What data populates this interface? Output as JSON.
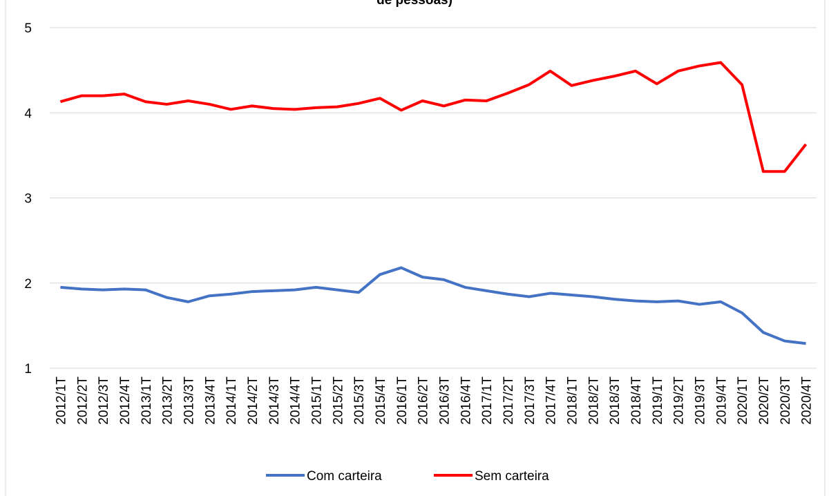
{
  "chart_data": {
    "type": "line",
    "title": "de pessoas)",
    "categories": [
      "2012/1T",
      "2012/2T",
      "2012/3T",
      "2012/4T",
      "2013/1T",
      "2013/2T",
      "2013/3T",
      "2013/4T",
      "2014/1T",
      "2014/2T",
      "2014/3T",
      "2014/4T",
      "2015/1T",
      "2015/2T",
      "2015/3T",
      "2015/4T",
      "2016/1T",
      "2016/2T",
      "2016/3T",
      "2016/4T",
      "2017/1T",
      "2017/2T",
      "2017/3T",
      "2017/4T",
      "2018/1T",
      "2018/2T",
      "2018/3T",
      "2018/4T",
      "2019/1T",
      "2019/2T",
      "2019/3T",
      "2019/4T",
      "2020/1T",
      "2020/2T",
      "2020/3T",
      "2020/4T"
    ],
    "series": [
      {
        "name": "Com carteira",
        "color": "#4472c4",
        "values": [
          1.95,
          1.93,
          1.92,
          1.93,
          1.92,
          1.83,
          1.78,
          1.85,
          1.87,
          1.9,
          1.91,
          1.92,
          1.95,
          1.92,
          1.89,
          2.1,
          2.18,
          2.07,
          2.04,
          1.95,
          1.91,
          1.87,
          1.84,
          1.88,
          1.86,
          1.84,
          1.81,
          1.79,
          1.78,
          1.79,
          1.75,
          1.78,
          1.65,
          1.42,
          1.32,
          1.29
        ]
      },
      {
        "name": "Sem carteira",
        "color": "#ff0000",
        "values": [
          4.13,
          4.2,
          4.2,
          4.22,
          4.13,
          4.1,
          4.14,
          4.1,
          4.04,
          4.08,
          4.05,
          4.04,
          4.06,
          4.07,
          4.11,
          4.17,
          4.03,
          4.14,
          4.08,
          4.15,
          4.14,
          4.23,
          4.33,
          4.49,
          4.32,
          4.38,
          4.43,
          4.49,
          4.34,
          4.49,
          4.55,
          4.59,
          4.33,
          3.31,
          3.31,
          3.63
        ]
      }
    ],
    "ylim": [
      1,
      5
    ],
    "yticks": [
      1,
      2,
      3,
      4,
      5
    ],
    "grid": true,
    "legend": "bottom"
  }
}
